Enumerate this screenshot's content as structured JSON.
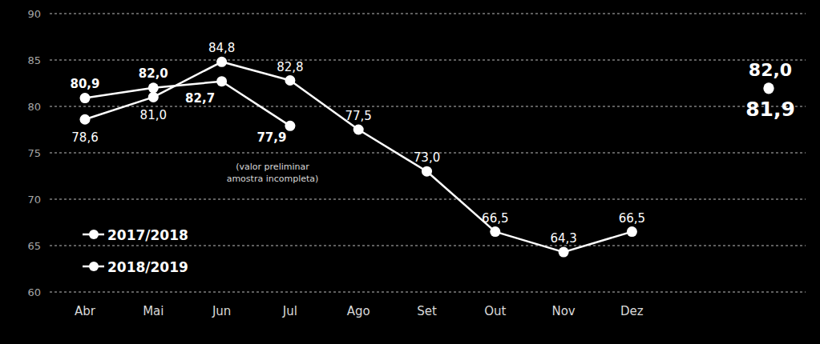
{
  "chart_data": {
    "type": "line",
    "categories": [
      "Abr",
      "Mai",
      "Jun",
      "Jul",
      "Ago",
      "Set",
      "Out",
      "Nov",
      "Dez"
    ],
    "ylim": [
      60,
      90
    ],
    "yticks": [
      60,
      65,
      70,
      75,
      80,
      85,
      90
    ],
    "grid": true,
    "data_labels": true,
    "legend": "lower left",
    "marker": "circle",
    "series": [
      {
        "name": "2017/2018",
        "color": "#ffffff",
        "values": [
          78.6,
          81.0,
          84.8,
          82.8,
          77.5,
          73.0,
          66.5,
          64.3,
          66.5
        ],
        "value_labels": [
          "78,6",
          "81,0",
          "84,8",
          "82,8",
          "77,5",
          "73,0",
          "66,5",
          "64,3",
          "66,5"
        ],
        "summary_value": 81.9,
        "summary_label": "81,9"
      },
      {
        "name": "2018/2019",
        "color": "#ffffff",
        "values": [
          80.9,
          82.0,
          82.7,
          77.9,
          null,
          null,
          null,
          null,
          null
        ],
        "value_labels": [
          "80,9",
          "82,0",
          "82,7",
          "77,9",
          null,
          null,
          null,
          null,
          null
        ],
        "summary_value": 82.0,
        "summary_label": "82,0"
      }
    ],
    "annotations": [
      {
        "lines": [
          "(valor preliminar",
          "amostra incompleta)"
        ]
      }
    ]
  }
}
